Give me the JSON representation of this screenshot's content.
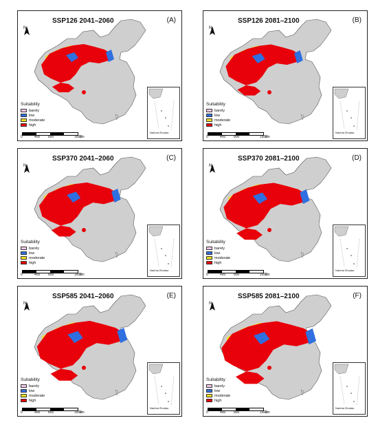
{
  "panels": [
    {
      "title": "SSP126  2041–2060",
      "label": "(A)"
    },
    {
      "title": "SSP126  2081–2100",
      "label": "(B)"
    },
    {
      "title": "SSP370  2041–2060",
      "label": "(C)"
    },
    {
      "title": "SSP370  2081–2100",
      "label": "(D)"
    },
    {
      "title": "SSP585  2041–2060",
      "label": "(E)"
    },
    {
      "title": "SSP585  2081–2100",
      "label": "(F)"
    }
  ],
  "legend": {
    "title": "Suitability",
    "items": [
      {
        "label": "barely",
        "color": "#f4c6e8"
      },
      {
        "label": "low",
        "color": "#2f6fe0"
      },
      {
        "label": "moderate",
        "color": "#f0e020"
      },
      {
        "label": "high",
        "color": "#e8000a"
      }
    ]
  },
  "scale": {
    "ticks": [
      "0",
      "400",
      "800",
      "1600"
    ],
    "unit": "km"
  },
  "inset_label": "Nanhai Zhudao",
  "north": "N",
  "colors": {
    "land": "#cfcfcf",
    "border": "#555555",
    "lowwater": "#2f6fe0"
  }
}
